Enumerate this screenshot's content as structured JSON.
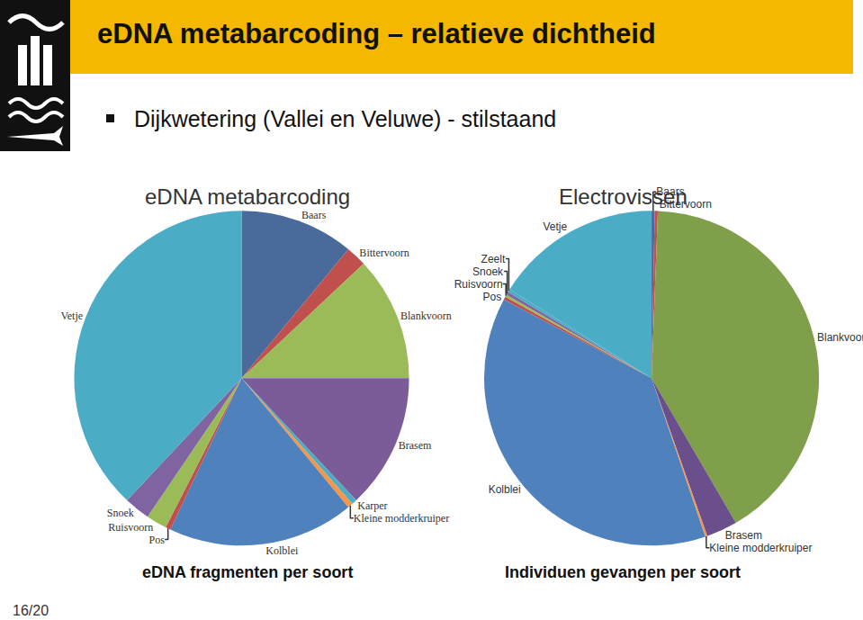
{
  "slide": {
    "title": "eDNA metabarcoding – relatieve dichtheid",
    "bullet": "Dijkwetering (Vallei en Veluwe) - stilstaand",
    "page": "16/20"
  },
  "chart_data": [
    {
      "type": "pie",
      "title": "eDNA metabarcoding",
      "subtitle": "eDNA fragmenten per soort",
      "categories": [
        "Baars",
        "Bittervoorn",
        "Blankvoorn",
        "Brasem",
        "Karper",
        "Kleine modderkruiper",
        "Kolblei",
        "Pos",
        "Ruisvoorn",
        "Snoek",
        "Vetje"
      ],
      "values": [
        11,
        2,
        12,
        13,
        0.5,
        0.5,
        18,
        0.5,
        2,
        2.5,
        38
      ],
      "colors": [
        "#4a6a9c",
        "#c0504d",
        "#9bbb59",
        "#7b5c99",
        "#4bacc6",
        "#f79646",
        "#4f81bd",
        "#c0504d",
        "#9bbb59",
        "#8064a2",
        "#4bacc6"
      ]
    },
    {
      "type": "pie",
      "title": "Electrovissen",
      "subtitle": "Individuen gevangen per soort",
      "categories": [
        "Baars",
        "Bittervoorn",
        "Blankvoorn",
        "Brasem",
        "Kleine modderkruiper",
        "Kolblei",
        "Pos",
        "Ruisvoorn",
        "Snoek",
        "Zeelt",
        "Vetje"
      ],
      "values": [
        0.3,
        0.3,
        41,
        3,
        0.2,
        38,
        0.3,
        0.2,
        0.3,
        0.3,
        16.1
      ],
      "colors": [
        "#4a6a9c",
        "#c0504d",
        "#7f9f4a",
        "#6b4f8c",
        "#f79646",
        "#4f81bd",
        "#c0504d",
        "#9bbb59",
        "#8064a2",
        "#4bacc6",
        "#4bacc6"
      ]
    }
  ]
}
